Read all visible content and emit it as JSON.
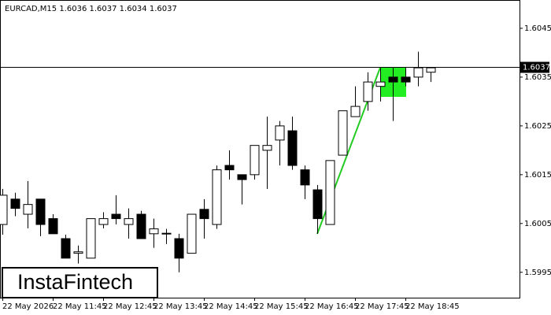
{
  "chart_data": {
    "type": "candlestick",
    "title": "EURCAD,M15  1.6036 1.6037 1.6034 1.6037",
    "logo": "InstaFintech",
    "categories": [
      "22 May 2026",
      null,
      null,
      null,
      "22 May 11:45",
      null,
      null,
      null,
      "22 May 12:45",
      null,
      null,
      null,
      "22 May 13:45",
      null,
      null,
      null,
      "22 May 14:45",
      null,
      null,
      null,
      "22 May 15:45",
      null,
      null,
      null,
      "22 May 16:45",
      null,
      null,
      null,
      "22 May 17:45",
      null,
      null,
      null,
      "22 May 18:45",
      null,
      null
    ],
    "open": [
      1.60048,
      1.601,
      1.60069,
      1.601,
      1.6006,
      1.60019,
      1.59989,
      1.59979,
      1.60048,
      1.60069,
      1.60048,
      1.60069,
      1.60029,
      1.60029,
      1.60019,
      1.59989,
      1.60079,
      1.60048,
      1.60169,
      1.6015,
      1.6015,
      1.602,
      1.60221,
      1.6024,
      1.6016,
      1.60119,
      1.60048,
      1.6019,
      1.60269,
      1.603,
      1.60331,
      1.6035,
      1.6035,
      1.6035,
      1.6036
    ],
    "high": [
      1.60121,
      1.60113,
      1.60137,
      1.601,
      1.60069,
      1.60027,
      1.60005,
      1.6006,
      1.60073,
      1.60108,
      1.60081,
      1.60076,
      1.6006,
      1.60039,
      1.60029,
      1.60069,
      1.601,
      1.60169,
      1.602,
      1.6015,
      1.6021,
      1.60269,
      1.6026,
      1.60269,
      1.60169,
      1.60129,
      1.60179,
      1.60281,
      1.60331,
      1.6036,
      1.60369,
      1.60369,
      1.60369,
      1.60402,
      1.60369
    ],
    "low": [
      1.60027,
      1.60065,
      1.6004,
      1.60024,
      1.60029,
      1.59979,
      1.59968,
      1.59979,
      1.6004,
      1.60048,
      1.60019,
      1.60019,
      1.6,
      1.60008,
      1.5995,
      1.59989,
      1.60019,
      1.60039,
      1.6014,
      1.60089,
      1.6014,
      1.60121,
      1.60169,
      1.6016,
      1.601,
      1.60029,
      1.60048,
      1.6019,
      1.60269,
      1.60281,
      1.603,
      1.6026,
      1.60331,
      1.60331,
      1.6034
    ],
    "close": [
      1.60108,
      1.60081,
      1.60089,
      1.60048,
      1.60029,
      1.59979,
      1.59992,
      1.6006,
      1.6006,
      1.6006,
      1.6006,
      1.60019,
      1.60039,
      1.6003,
      1.59979,
      1.60069,
      1.6006,
      1.6016,
      1.6016,
      1.6014,
      1.6021,
      1.6021,
      1.6025,
      1.60169,
      1.60129,
      1.6006,
      1.60179,
      1.60281,
      1.6029,
      1.6034,
      1.6034,
      1.6034,
      1.6034,
      1.60369,
      1.60369
    ],
    "up_color": "#ffffff",
    "down_color": "#000000",
    "current_price": 1.6037,
    "ylim": [
      1.59898,
      1.60508
    ],
    "yticks": [
      1.5995,
      1.6005,
      1.6015,
      1.6025,
      1.6035,
      1.6045
    ]
  }
}
